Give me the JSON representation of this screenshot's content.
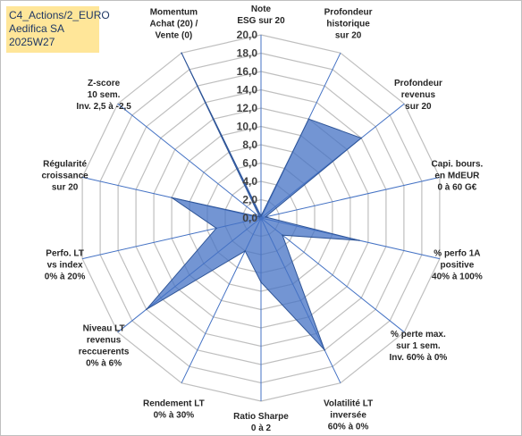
{
  "header": {
    "line1": "C4_Actions/2_EURO",
    "line2": "Aedifica SA",
    "line3": "2025W27"
  },
  "chart_data": {
    "type": "radar",
    "title": "",
    "r_range": [
      0,
      20
    ],
    "r_ticks": [
      "0,0",
      "2,0",
      "4,0",
      "6,0",
      "8,0",
      "10,0",
      "12,0",
      "14,0",
      "16,0",
      "18,0",
      "20,0"
    ],
    "axes": [
      {
        "label": [
          "Note",
          "ESG sur 20"
        ]
      },
      {
        "label": [
          "Profondeur",
          "historique",
          "sur 20"
        ]
      },
      {
        "label": [
          "Profondeur",
          "revenus",
          "sur 20"
        ]
      },
      {
        "label": [
          "Capi. bours.",
          "en MdEUR",
          "0 à 60 G€"
        ]
      },
      {
        "label": [
          "% perfo 1A",
          "positive",
          "40% à 100%"
        ]
      },
      {
        "label": [
          "% perte max.",
          "sur 1 sem.",
          "Inv. 60% à 0%"
        ]
      },
      {
        "label": [
          "Volatilité LT",
          "inversée",
          "60% à 0%"
        ]
      },
      {
        "label": [
          "Ratio Sharpe",
          "0 à 2"
        ]
      },
      {
        "label": [
          "Rendement LT",
          "0% à 30%"
        ]
      },
      {
        "label": [
          "Niveau LT",
          "revenus",
          "reccuerents",
          "0% à 6%"
        ]
      },
      {
        "label": [
          "Perfo. LT",
          "vs index",
          "0% à 20%"
        ]
      },
      {
        "label": [
          "Régularité",
          "croissance",
          "sur 20"
        ]
      },
      {
        "label": [
          "Z-score",
          "10 sem.",
          "Inv. 2,5 à -2,5"
        ]
      },
      {
        "label": [
          "Momentum",
          "Achat (20) /",
          "Vente (0)"
        ]
      }
    ],
    "series": [
      {
        "values": [
          0.2,
          12,
          14,
          0.5,
          11,
          3,
          16,
          7,
          4,
          16,
          5,
          10,
          0.2,
          20
        ]
      }
    ],
    "colors": {
      "fill": "#4472c4",
      "fill_opacity": 0.75,
      "stroke": "#2f5597",
      "axis_line": "#4472c4",
      "grid": "#bfbfbf"
    },
    "grid": true,
    "legend": "none"
  }
}
